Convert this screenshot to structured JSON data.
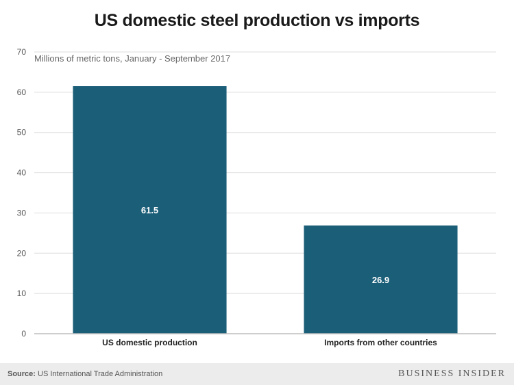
{
  "chart_data": {
    "type": "bar",
    "title": "US domestic steel production vs imports",
    "subtitle": "Millions of metric tons, January - September 2017",
    "categories": [
      "US domestic production",
      "Imports from other countries"
    ],
    "values": [
      61.5,
      26.9
    ],
    "value_labels": [
      "61.5",
      "26.9"
    ],
    "ylim": [
      0,
      70
    ],
    "yticks": [
      "0",
      "10",
      "20",
      "30",
      "40",
      "50",
      "60",
      "70"
    ],
    "ytick_values": [
      0,
      10,
      20,
      30,
      40,
      50,
      60,
      70
    ],
    "xlabel": "",
    "ylabel": "",
    "grid": true,
    "bar_color": "#1b5e78"
  },
  "footer": {
    "source_label": "Source:",
    "source_text": " US International Trade Administration",
    "brand": "BUSINESS INSIDER"
  }
}
